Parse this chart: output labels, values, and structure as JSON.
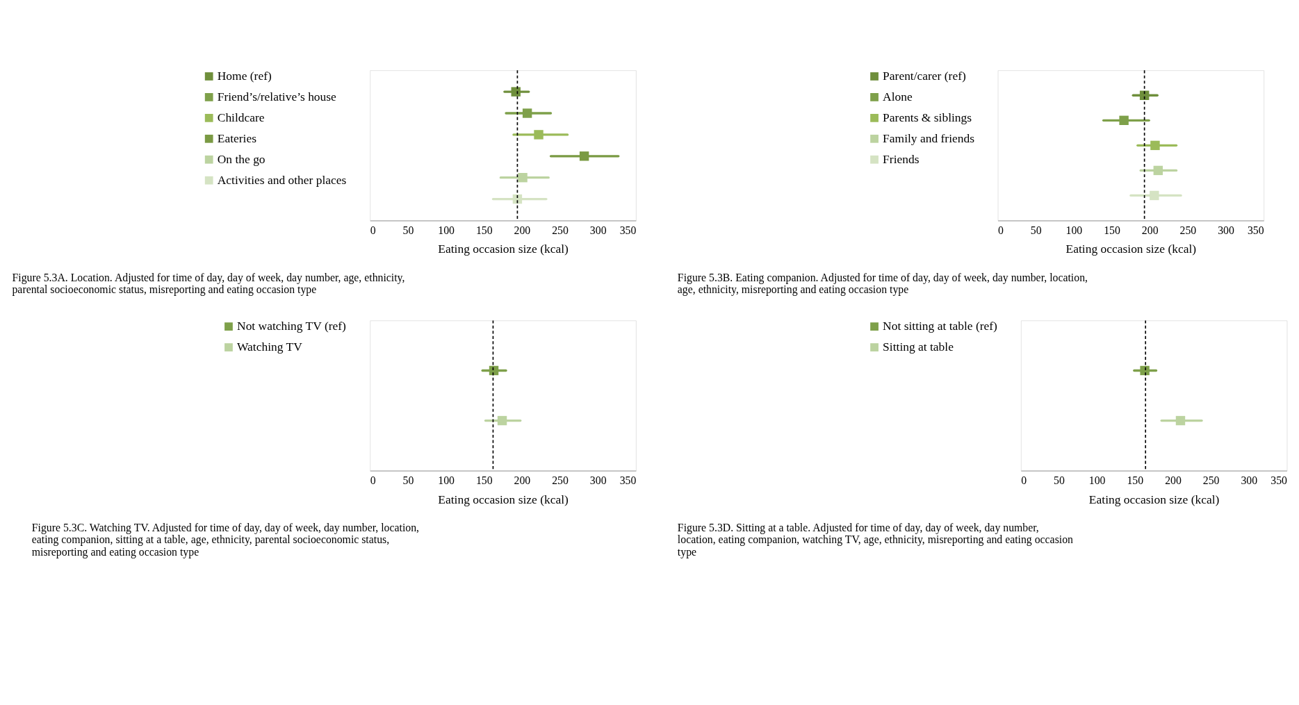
{
  "chart_data": [
    {
      "type": "scatter",
      "orientation": "horizontal",
      "title": "Figure 5.3A. Location. Adjusted for time of day, day of week, day number, age, ethnicity, parental socioeconomic status, misreporting and eating occasion type",
      "xlabel": "Eating occasion size (kcal)",
      "categories": [
        null,
        null,
        null,
        null,
        null,
        null
      ],
      "xlim": [
        0,
        350
      ],
      "xticks": [
        0,
        50,
        100,
        150,
        200,
        250,
        300,
        350
      ],
      "marker": "square",
      "legend": "top left",
      "grid": false,
      "series": [
        {
          "name": "Home (ref)",
          "color": "#6f8f3c",
          "values": [
            192,
            null,
            null,
            null,
            null,
            null
          ],
          "errors": [
            [
              177,
              209
            ],
            null,
            null,
            null,
            null,
            null
          ]
        },
        {
          "name": "Friend’s/relative’s house",
          "color": "#7ea04a",
          "values": [
            null,
            207,
            null,
            null,
            null,
            null
          ],
          "errors": [
            null,
            [
              179,
              238
            ],
            null,
            null,
            null,
            null
          ]
        },
        {
          "name": "Childcare",
          "color": "#9bbb59",
          "values": [
            null,
            null,
            222,
            null,
            null,
            null
          ],
          "errors": [
            null,
            null,
            [
              189,
              260
            ],
            null,
            null,
            null
          ]
        },
        {
          "name": "Eateries",
          "color": "#7a9a43",
          "values": [
            null,
            null,
            null,
            282,
            null,
            null
          ],
          "errors": [
            null,
            null,
            null,
            [
              238,
              327
            ],
            null,
            null
          ]
        },
        {
          "name": "On the go",
          "color": "#bcd3a0",
          "values": [
            null,
            null,
            null,
            null,
            201,
            null
          ],
          "errors": [
            null,
            null,
            null,
            null,
            [
              172,
              235
            ],
            null
          ]
        },
        {
          "name": "Activities and other places",
          "color": "#d5e3c3",
          "values": [
            null,
            null,
            null,
            null,
            null,
            194
          ],
          "errors": [
            null,
            null,
            null,
            null,
            null,
            [
              162,
              232
            ]
          ]
        }
      ],
      "ref_lines": [
        {
          "axis": "x",
          "value": 194,
          "color": "#000000",
          "line_style": "dashed"
        }
      ]
    },
    {
      "type": "scatter",
      "orientation": "horizontal",
      "title": "Figure 5.3B. Eating companion. Adjusted for time of day, day of week, day number, location, age, ethnicity, misreporting and eating occasion type",
      "xlabel": "Eating occasion size (kcal)",
      "categories": [
        null,
        null,
        null,
        null,
        null
      ],
      "xlim": [
        0,
        350
      ],
      "xticks": [
        0,
        50,
        100,
        150,
        200,
        250,
        300,
        350
      ],
      "marker": "square",
      "legend": "top left",
      "grid": false,
      "series": [
        {
          "name": "Parent/carer (ref)",
          "color": "#6f8f3c",
          "values": [
            193,
            null,
            null,
            null,
            null
          ],
          "errors": [
            [
              178,
              210
            ],
            null,
            null,
            null,
            null
          ]
        },
        {
          "name": "Alone",
          "color": "#7ea04a",
          "values": [
            null,
            166,
            null,
            null,
            null
          ],
          "errors": [
            null,
            [
              139,
              199
            ],
            null,
            null,
            null
          ]
        },
        {
          "name": "Parents & siblings",
          "color": "#9bbb59",
          "values": [
            null,
            null,
            207,
            null,
            null
          ],
          "errors": [
            null,
            null,
            [
              184,
              235
            ],
            null,
            null
          ]
        },
        {
          "name": "Family and friends",
          "color": "#bcd3a0",
          "values": [
            null,
            null,
            null,
            211,
            null
          ],
          "errors": [
            null,
            null,
            null,
            [
              188,
              235
            ],
            null
          ]
        },
        {
          "name": "Friends",
          "color": "#d5e3c3",
          "values": [
            null,
            null,
            null,
            null,
            206
          ],
          "errors": [
            null,
            null,
            null,
            null,
            [
              175,
              241
            ]
          ]
        }
      ],
      "ref_lines": [
        {
          "axis": "x",
          "value": 193,
          "color": "#000000",
          "line_style": "dashed"
        }
      ]
    },
    {
      "type": "scatter",
      "orientation": "horizontal",
      "title": "Figure 5.3C. Watching TV. Adjusted for time of day, day of week, day number, location, eating companion, sitting at a table, age, ethnicity, parental socioeconomic status, misreporting and eating occasion type",
      "xlabel": "Eating occasion size (kcal)",
      "categories": [
        null,
        null
      ],
      "xlim": [
        0,
        350
      ],
      "xticks": [
        0,
        50,
        100,
        150,
        200,
        250,
        300,
        350
      ],
      "marker": "square",
      "legend": "top left",
      "grid": false,
      "series": [
        {
          "name": "Not watching TV (ref)",
          "color": "#7ea04a",
          "values": [
            163,
            null
          ],
          "errors": [
            [
              148,
              179
            ],
            null
          ]
        },
        {
          "name": "Watching TV",
          "color": "#bcd3a0",
          "values": [
            null,
            174
          ],
          "errors": [
            null,
            [
              152,
              198
            ]
          ]
        }
      ],
      "ref_lines": [
        {
          "axis": "x",
          "value": 162,
          "color": "#000000",
          "line_style": "dashed"
        }
      ]
    },
    {
      "type": "scatter",
      "orientation": "horizontal",
      "title": "Figure 5.3D. Sitting at a table. Adjusted for time of day, day of week, day number, location, eating companion, watching TV, age, ethnicity, misreporting and eating occasion type",
      "xlabel": "Eating occasion size (kcal)",
      "categories": [
        null,
        null
      ],
      "xlim": [
        0,
        350
      ],
      "xticks": [
        0,
        50,
        100,
        150,
        200,
        250,
        300,
        350
      ],
      "marker": "square",
      "legend": "top left",
      "grid": false,
      "series": [
        {
          "name": "Not sitting at table (ref)",
          "color": "#7ea04a",
          "values": [
            163,
            null
          ],
          "errors": [
            [
              149,
              178
            ],
            null
          ]
        },
        {
          "name": "Sitting at table",
          "color": "#bcd3a0",
          "values": [
            null,
            210
          ],
          "errors": [
            null,
            [
              185,
              238
            ]
          ]
        }
      ],
      "ref_lines": [
        {
          "axis": "x",
          "value": 164,
          "color": "#000000",
          "line_style": "dashed"
        }
      ]
    }
  ]
}
